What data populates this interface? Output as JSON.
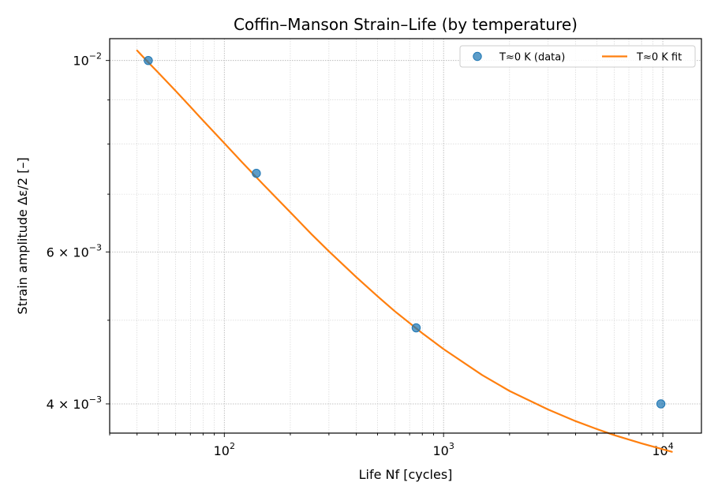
{
  "chart_data": {
    "type": "scatter",
    "title": "Coffin–Manson Strain–Life (by temperature)",
    "xlabel": "Life Nf [cycles]",
    "ylabel": "Strain amplitude Δε/2 [–]",
    "xscale": "log",
    "yscale": "log",
    "xlim": [
      30,
      15000
    ],
    "ylim": [
      0.0037,
      0.0106
    ],
    "grid": true,
    "legend_position": "top-right",
    "x_ticks": [
      {
        "value": 100,
        "base": "10",
        "exp": "2"
      },
      {
        "value": 1000,
        "base": "10",
        "exp": "3"
      },
      {
        "value": 10000,
        "base": "10",
        "exp": "4"
      }
    ],
    "y_ticks": [
      {
        "value": 0.004,
        "mant": "4",
        "base": "10",
        "exp": "−3"
      },
      {
        "value": 0.006,
        "mant": "6",
        "base": "10",
        "exp": "−3"
      },
      {
        "value": 0.01,
        "mant": "",
        "base": "10",
        "exp": "−2"
      }
    ],
    "series": [
      {
        "name": "T≈0 K (data)",
        "kind": "scatter",
        "color": "#1f77b4",
        "x": [
          45,
          140,
          750,
          9800
        ],
        "y": [
          0.01,
          0.0074,
          0.0049,
          0.004
        ]
      },
      {
        "name": "T≈0 K fit",
        "kind": "line",
        "color": "#ff7f0e",
        "x": [
          40,
          45,
          50,
          60,
          70,
          80,
          100,
          120,
          150,
          200,
          250,
          300,
          400,
          500,
          600,
          800,
          1000,
          1500,
          2000,
          3000,
          4000,
          5000,
          6000,
          8000,
          11000
        ],
        "y": [
          0.01027,
          0.00995,
          0.00968,
          0.00922,
          0.00884,
          0.00852,
          0.00802,
          0.00763,
          0.00719,
          0.00667,
          0.00629,
          0.00601,
          0.00561,
          0.00533,
          0.00512,
          0.00483,
          0.00463,
          0.00432,
          0.00414,
          0.00394,
          0.00382,
          0.00374,
          0.00368,
          0.0036,
          0.00352
        ]
      }
    ]
  }
}
